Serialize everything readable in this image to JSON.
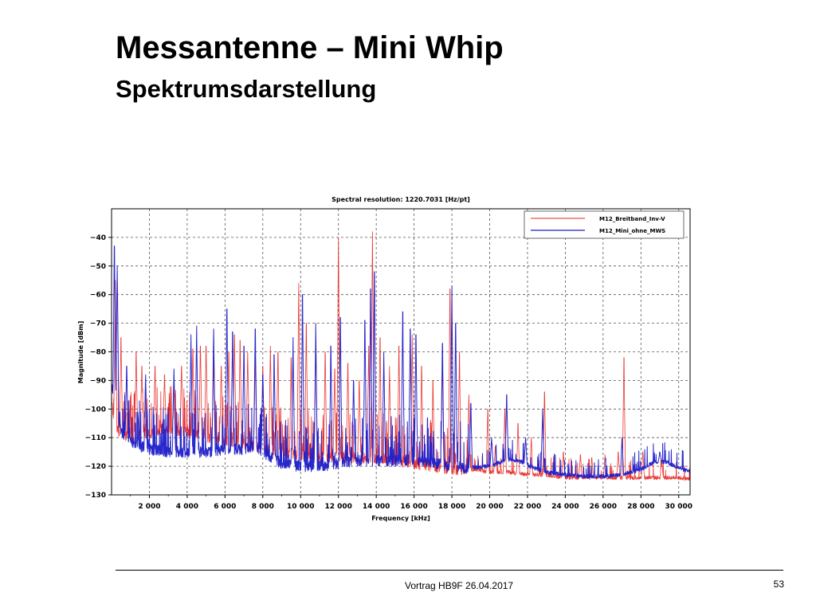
{
  "slide": {
    "title": "Messantenne – Mini Whip",
    "subtitle": "Spektrumsdarstellung",
    "footer_text": "Vortrag HB9F 26.04.2017",
    "page_number": "53"
  },
  "chart_data": {
    "type": "line",
    "title": "Spectral resolution:  1220.7031  [Hz/pt]",
    "xlabel": "Frequency [kHz]",
    "ylabel": "Magnitude [dBm]",
    "xlim": [
      0,
      30600
    ],
    "ylim": [
      -130,
      -30
    ],
    "x_ticks": [
      2000,
      4000,
      6000,
      8000,
      10000,
      12000,
      14000,
      16000,
      18000,
      20000,
      22000,
      24000,
      26000,
      28000,
      30000
    ],
    "x_tick_labels": [
      "2 000",
      "4 000",
      "6 000",
      "8 000",
      "10 000",
      "12 000",
      "14 000",
      "16 000",
      "18 000",
      "20 000",
      "22 000",
      "24 000",
      "26 000",
      "28 000",
      "30 000"
    ],
    "y_ticks": [
      -130,
      -120,
      -110,
      -100,
      -90,
      -80,
      -70,
      -60,
      -50,
      -40
    ],
    "y_tick_labels": [
      "−130",
      "−120",
      "−110",
      "−100",
      "−90",
      "−80",
      "−70",
      "−60",
      "−50",
      "−40"
    ],
    "grid": true,
    "legend_position": "top-right",
    "series": [
      {
        "name": "M12_Breitband_Inv-V",
        "color": "#e8231f",
        "baseline": [
          [
            0,
            -98
          ],
          [
            200,
            -106
          ],
          [
            400,
            -108
          ],
          [
            1000,
            -110
          ],
          [
            2000,
            -108
          ],
          [
            3000,
            -107
          ],
          [
            4000,
            -108
          ],
          [
            5000,
            -110
          ],
          [
            6000,
            -111
          ],
          [
            7000,
            -112
          ],
          [
            8000,
            -114
          ],
          [
            9000,
            -115
          ],
          [
            10000,
            -116
          ],
          [
            11000,
            -117
          ],
          [
            12000,
            -117
          ],
          [
            13000,
            -117
          ],
          [
            14000,
            -117
          ],
          [
            15000,
            -118
          ],
          [
            16000,
            -119
          ],
          [
            17000,
            -120
          ],
          [
            18000,
            -121
          ],
          [
            19000,
            -121
          ],
          [
            20000,
            -122
          ],
          [
            21000,
            -122
          ],
          [
            22000,
            -123
          ],
          [
            23000,
            -123
          ],
          [
            24000,
            -124
          ],
          [
            25000,
            -124
          ],
          [
            26000,
            -124
          ],
          [
            27000,
            -124
          ],
          [
            28000,
            -124
          ],
          [
            29000,
            -124
          ],
          [
            30000,
            -124
          ],
          [
            30600,
            -124.5
          ]
        ],
        "peaks": [
          [
            200,
            -55
          ],
          [
            500,
            -75
          ],
          [
            1300,
            -80
          ],
          [
            1600,
            -85
          ],
          [
            2300,
            -85
          ],
          [
            2800,
            -88
          ],
          [
            3300,
            -90
          ],
          [
            3700,
            -85
          ],
          [
            4300,
            -79
          ],
          [
            4700,
            -78
          ],
          [
            5000,
            -78
          ],
          [
            5400,
            -83
          ],
          [
            5800,
            -85
          ],
          [
            6200,
            -80
          ],
          [
            6500,
            -74
          ],
          [
            6800,
            -76
          ],
          [
            7200,
            -80
          ],
          [
            7600,
            -82
          ],
          [
            8000,
            -85
          ],
          [
            8400,
            -78
          ],
          [
            8800,
            -80
          ],
          [
            9500,
            -82
          ],
          [
            9900,
            -56
          ],
          [
            10300,
            -70
          ],
          [
            10800,
            -75
          ],
          [
            11300,
            -80
          ],
          [
            11800,
            -86
          ],
          [
            12000,
            -40
          ],
          [
            12500,
            -84
          ],
          [
            13100,
            -90
          ],
          [
            13600,
            -78
          ],
          [
            13800,
            -38
          ],
          [
            14200,
            -75
          ],
          [
            14700,
            -85
          ],
          [
            15200,
            -78
          ],
          [
            15900,
            -74
          ],
          [
            16400,
            -85
          ],
          [
            17000,
            -90
          ],
          [
            17500,
            -83
          ],
          [
            17900,
            -58
          ],
          [
            18400,
            -80
          ],
          [
            18900,
            -95
          ],
          [
            19900,
            -100
          ],
          [
            20300,
            -113
          ],
          [
            20800,
            -100
          ],
          [
            21500,
            -105
          ],
          [
            22200,
            -110
          ],
          [
            22900,
            -94
          ],
          [
            23900,
            -115
          ],
          [
            24800,
            -116
          ],
          [
            25400,
            -117
          ],
          [
            26100,
            -116
          ],
          [
            26800,
            -115
          ],
          [
            27100,
            -82
          ],
          [
            28100,
            -115
          ],
          [
            29100,
            -118
          ]
        ]
      },
      {
        "name": "M12_Mini_ohne_MWS",
        "color": "#1c1cc8",
        "baseline": [
          [
            0,
            -92
          ],
          [
            500,
            -108
          ],
          [
            1000,
            -111
          ],
          [
            1500,
            -113
          ],
          [
            2000,
            -114
          ],
          [
            3000,
            -115
          ],
          [
            4000,
            -115
          ],
          [
            5000,
            -115
          ],
          [
            6000,
            -114
          ],
          [
            7000,
            -114
          ],
          [
            7500,
            -113
          ],
          [
            8000,
            -115
          ],
          [
            9000,
            -119
          ],
          [
            10000,
            -120
          ],
          [
            11000,
            -120
          ],
          [
            12000,
            -119
          ],
          [
            13000,
            -118
          ],
          [
            14000,
            -118
          ],
          [
            15000,
            -118
          ],
          [
            16000,
            -118
          ],
          [
            17000,
            -119
          ],
          [
            18000,
            -120
          ],
          [
            19000,
            -120.5
          ],
          [
            20000,
            -120
          ],
          [
            20600,
            -118.5
          ],
          [
            21100,
            -117.5
          ],
          [
            21700,
            -118.5
          ],
          [
            22300,
            -120.5
          ],
          [
            23000,
            -122
          ],
          [
            24000,
            -123
          ],
          [
            25000,
            -123.5
          ],
          [
            26000,
            -123.5
          ],
          [
            27000,
            -123
          ],
          [
            28000,
            -121
          ],
          [
            28700,
            -118.5
          ],
          [
            29300,
            -118.5
          ],
          [
            30000,
            -120.5
          ],
          [
            30600,
            -122
          ]
        ],
        "peaks": [
          [
            150,
            -43
          ],
          [
            300,
            -50
          ],
          [
            800,
            -85
          ],
          [
            1800,
            -88
          ],
          [
            3300,
            -86
          ],
          [
            4200,
            -74
          ],
          [
            4500,
            -71
          ],
          [
            5400,
            -72
          ],
          [
            6100,
            -65
          ],
          [
            6400,
            -73
          ],
          [
            7000,
            -78
          ],
          [
            7600,
            -72
          ],
          [
            8000,
            -88
          ],
          [
            8600,
            -81
          ],
          [
            9600,
            -75
          ],
          [
            10100,
            -60
          ],
          [
            10800,
            -70
          ],
          [
            11600,
            -78
          ],
          [
            12100,
            -68
          ],
          [
            12800,
            -90
          ],
          [
            13400,
            -69
          ],
          [
            13700,
            -58
          ],
          [
            13900,
            -52
          ],
          [
            14400,
            -80
          ],
          [
            15400,
            -66
          ],
          [
            15800,
            -72
          ],
          [
            16100,
            -74
          ],
          [
            17500,
            -77
          ],
          [
            18000,
            -57
          ],
          [
            18200,
            -70
          ],
          [
            19000,
            -98
          ],
          [
            20100,
            -110
          ],
          [
            20900,
            -95
          ],
          [
            21900,
            -110
          ],
          [
            22800,
            -100
          ],
          [
            27000,
            -110
          ],
          [
            29000,
            -115
          ]
        ]
      }
    ]
  }
}
